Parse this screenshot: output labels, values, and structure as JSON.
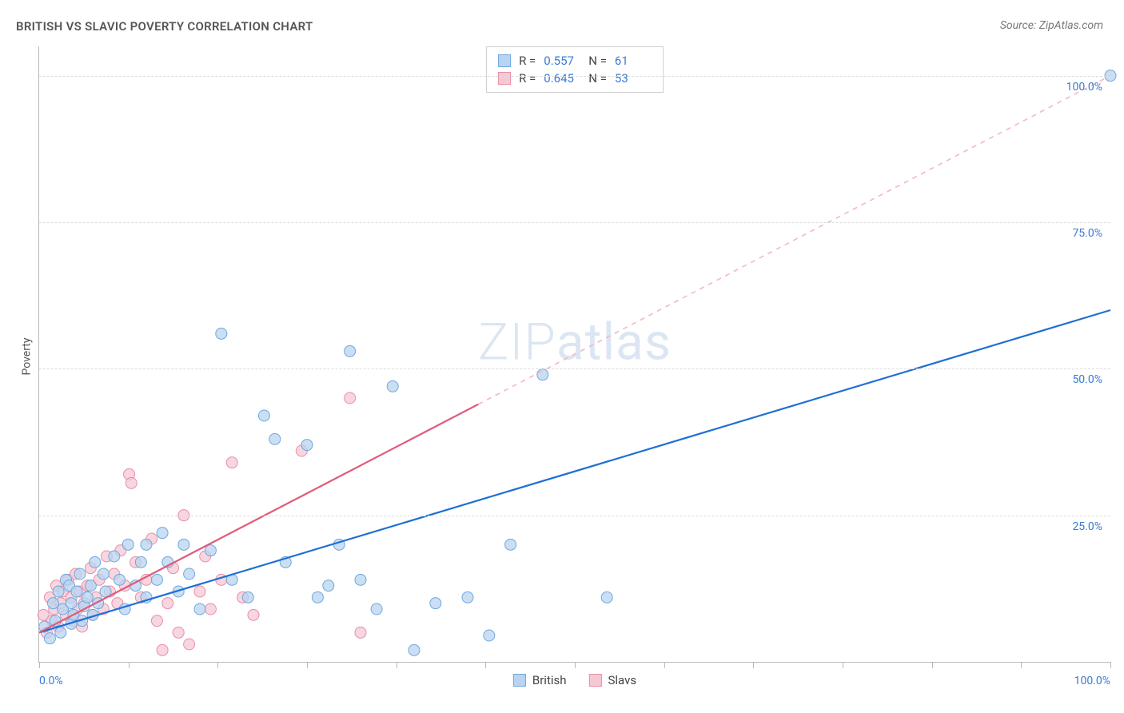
{
  "title": "BRITISH VS SLAVIC POVERTY CORRELATION CHART",
  "source_label": "Source:",
  "source_name": "ZipAtlas.com",
  "ylabel": "Poverty",
  "watermark_a": "ZIP",
  "watermark_b": "atlas",
  "chart": {
    "type": "scatter",
    "xlim": [
      0,
      100
    ],
    "ylim": [
      0,
      105
    ],
    "x_tick_percent": [
      0,
      8.33,
      16.67,
      25,
      33.33,
      41.67,
      50,
      58.33,
      66.67,
      75,
      83.33,
      91.67,
      100
    ],
    "y_gridlines": [
      25,
      50,
      75,
      100
    ],
    "y_tick_labels": [
      "25.0%",
      "50.0%",
      "75.0%",
      "100.0%"
    ],
    "x_left_label": "0.0%",
    "x_right_label": "100.0%",
    "background_color": "#ffffff",
    "grid_color": "#dcdcdc",
    "axis_color": "#b9b9b9",
    "series": [
      {
        "name": "British",
        "label": "British",
        "color_fill": "#b8d4f0",
        "color_stroke": "#6fa8dc",
        "line_color": "#1f6fd4",
        "line_dash_color": "#9db9de",
        "R": "0.557",
        "N": "61",
        "marker_r": 7,
        "trend": {
          "x1": 0,
          "y1": 5,
          "x2": 100,
          "y2": 60,
          "dash_from_x": 100
        },
        "points": [
          [
            0.5,
            6
          ],
          [
            1,
            4
          ],
          [
            1.3,
            10
          ],
          [
            1.5,
            7
          ],
          [
            1.8,
            12
          ],
          [
            2,
            5
          ],
          [
            2.2,
            9
          ],
          [
            2.5,
            14
          ],
          [
            2.8,
            13
          ],
          [
            3,
            6.5
          ],
          [
            3,
            10
          ],
          [
            3.2,
            8
          ],
          [
            3.5,
            12
          ],
          [
            3.8,
            15
          ],
          [
            4,
            7
          ],
          [
            4.2,
            9.5
          ],
          [
            4.5,
            11
          ],
          [
            4.8,
            13
          ],
          [
            5,
            8
          ],
          [
            5.2,
            17
          ],
          [
            5.5,
            10
          ],
          [
            6,
            15
          ],
          [
            6.2,
            12
          ],
          [
            7,
            18
          ],
          [
            7.5,
            14
          ],
          [
            8,
            9
          ],
          [
            8.3,
            20
          ],
          [
            9,
            13
          ],
          [
            9.5,
            17
          ],
          [
            10,
            11
          ],
          [
            10,
            20
          ],
          [
            11,
            14
          ],
          [
            11.5,
            22
          ],
          [
            12,
            17
          ],
          [
            13,
            12
          ],
          [
            13.5,
            20
          ],
          [
            14,
            15
          ],
          [
            15,
            9
          ],
          [
            16,
            19
          ],
          [
            17,
            56
          ],
          [
            18,
            14
          ],
          [
            19.5,
            11
          ],
          [
            21,
            42
          ],
          [
            22,
            38
          ],
          [
            23,
            17
          ],
          [
            25,
            37
          ],
          [
            26,
            11
          ],
          [
            27,
            13
          ],
          [
            28,
            20
          ],
          [
            29,
            53
          ],
          [
            30,
            14
          ],
          [
            31.5,
            9
          ],
          [
            33,
            47
          ],
          [
            35,
            2
          ],
          [
            37,
            10
          ],
          [
            40,
            11
          ],
          [
            42,
            4.5
          ],
          [
            44,
            20
          ],
          [
            47,
            49
          ],
          [
            53,
            11
          ],
          [
            100,
            100
          ]
        ]
      },
      {
        "name": "Slavs",
        "label": "Slavs",
        "color_fill": "#f6c8d4",
        "color_stroke": "#e78fa8",
        "line_color": "#e05a7a",
        "line_dash_color": "#f3b7c5",
        "R": "0.645",
        "N": "53",
        "marker_r": 7,
        "trend": {
          "x1": 0,
          "y1": 5,
          "x2": 100,
          "y2": 100,
          "dash_from_x": 41
        },
        "points": [
          [
            0.4,
            8
          ],
          [
            0.7,
            5
          ],
          [
            1,
            11
          ],
          [
            1.2,
            7
          ],
          [
            1.4,
            9
          ],
          [
            1.6,
            13
          ],
          [
            1.8,
            6
          ],
          [
            2,
            10
          ],
          [
            2.2,
            12
          ],
          [
            2.5,
            8
          ],
          [
            2.7,
            14
          ],
          [
            3,
            11
          ],
          [
            3.2,
            7
          ],
          [
            3.4,
            15
          ],
          [
            3.6,
            9
          ],
          [
            3.8,
            12
          ],
          [
            4,
            6
          ],
          [
            4.2,
            10
          ],
          [
            4.5,
            13
          ],
          [
            4.8,
            16
          ],
          [
            5,
            8
          ],
          [
            5.3,
            11
          ],
          [
            5.6,
            14
          ],
          [
            6,
            9
          ],
          [
            6.3,
            18
          ],
          [
            6.6,
            12
          ],
          [
            7,
            15
          ],
          [
            7.3,
            10
          ],
          [
            7.6,
            19
          ],
          [
            8,
            13
          ],
          [
            8.4,
            32
          ],
          [
            8.6,
            30.5
          ],
          [
            9,
            17
          ],
          [
            9.5,
            11
          ],
          [
            10,
            14
          ],
          [
            10.5,
            21
          ],
          [
            11,
            7
          ],
          [
            11.5,
            2
          ],
          [
            12,
            10
          ],
          [
            12.5,
            16
          ],
          [
            13,
            5
          ],
          [
            13.5,
            25
          ],
          [
            14,
            3
          ],
          [
            15,
            12
          ],
          [
            15.5,
            18
          ],
          [
            16,
            9
          ],
          [
            17,
            14
          ],
          [
            18,
            34
          ],
          [
            19,
            11
          ],
          [
            20,
            8
          ],
          [
            24.5,
            36
          ],
          [
            29,
            45
          ],
          [
            30,
            5
          ]
        ]
      }
    ],
    "legend_bottom": [
      {
        "label": "British",
        "fill": "#b8d4f0",
        "stroke": "#6fa8dc"
      },
      {
        "label": "Slavs",
        "fill": "#f6c8d4",
        "stroke": "#e78fa8"
      }
    ]
  }
}
